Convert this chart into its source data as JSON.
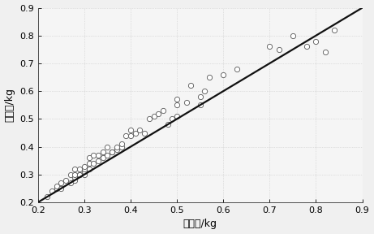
{
  "x_data": [
    0.22,
    0.23,
    0.24,
    0.24,
    0.25,
    0.25,
    0.26,
    0.27,
    0.27,
    0.28,
    0.28,
    0.28,
    0.28,
    0.29,
    0.29,
    0.29,
    0.3,
    0.3,
    0.3,
    0.3,
    0.31,
    0.31,
    0.31,
    0.32,
    0.32,
    0.33,
    0.33,
    0.34,
    0.34,
    0.35,
    0.35,
    0.36,
    0.36,
    0.37,
    0.37,
    0.38,
    0.38,
    0.39,
    0.4,
    0.4,
    0.41,
    0.42,
    0.43,
    0.44,
    0.45,
    0.46,
    0.47,
    0.48,
    0.49,
    0.5,
    0.5,
    0.5,
    0.52,
    0.53,
    0.55,
    0.55,
    0.56,
    0.57,
    0.6,
    0.63,
    0.7,
    0.72,
    0.75,
    0.78,
    0.8,
    0.82,
    0.84
  ],
  "y_data": [
    0.22,
    0.24,
    0.25,
    0.26,
    0.25,
    0.27,
    0.28,
    0.27,
    0.3,
    0.28,
    0.29,
    0.3,
    0.32,
    0.3,
    0.3,
    0.32,
    0.3,
    0.31,
    0.32,
    0.33,
    0.32,
    0.34,
    0.36,
    0.34,
    0.37,
    0.35,
    0.37,
    0.36,
    0.38,
    0.37,
    0.4,
    0.38,
    0.38,
    0.39,
    0.4,
    0.4,
    0.41,
    0.44,
    0.44,
    0.46,
    0.45,
    0.46,
    0.45,
    0.5,
    0.51,
    0.52,
    0.53,
    0.48,
    0.5,
    0.51,
    0.55,
    0.57,
    0.56,
    0.62,
    0.55,
    0.58,
    0.6,
    0.65,
    0.66,
    0.68,
    0.76,
    0.75,
    0.8,
    0.76,
    0.78,
    0.74,
    0.82
  ],
  "line_x": [
    0.2,
    0.9
  ],
  "line_y": [
    0.2,
    0.9
  ],
  "xlim": [
    0.2,
    0.9
  ],
  "ylim": [
    0.2,
    0.9
  ],
  "xticks": [
    0.2,
    0.3,
    0.4,
    0.5,
    0.6,
    0.7,
    0.8,
    0.9
  ],
  "yticks": [
    0.2,
    0.3,
    0.4,
    0.5,
    0.6,
    0.7,
    0.8,
    0.9
  ],
  "xlabel": "测试值/kg",
  "ylabel": "预测值/kg",
  "marker_facecolor": "white",
  "marker_edge_color": "#555555",
  "marker_size": 4.5,
  "line_color": "#111111",
  "line_width": 1.6,
  "bg_color": "#f0f0f0",
  "plot_bg_color": "#f5f5f5",
  "grid_color": "#aaaaaa",
  "grid_style": ":",
  "font_size_label": 9,
  "font_size_tick": 8
}
